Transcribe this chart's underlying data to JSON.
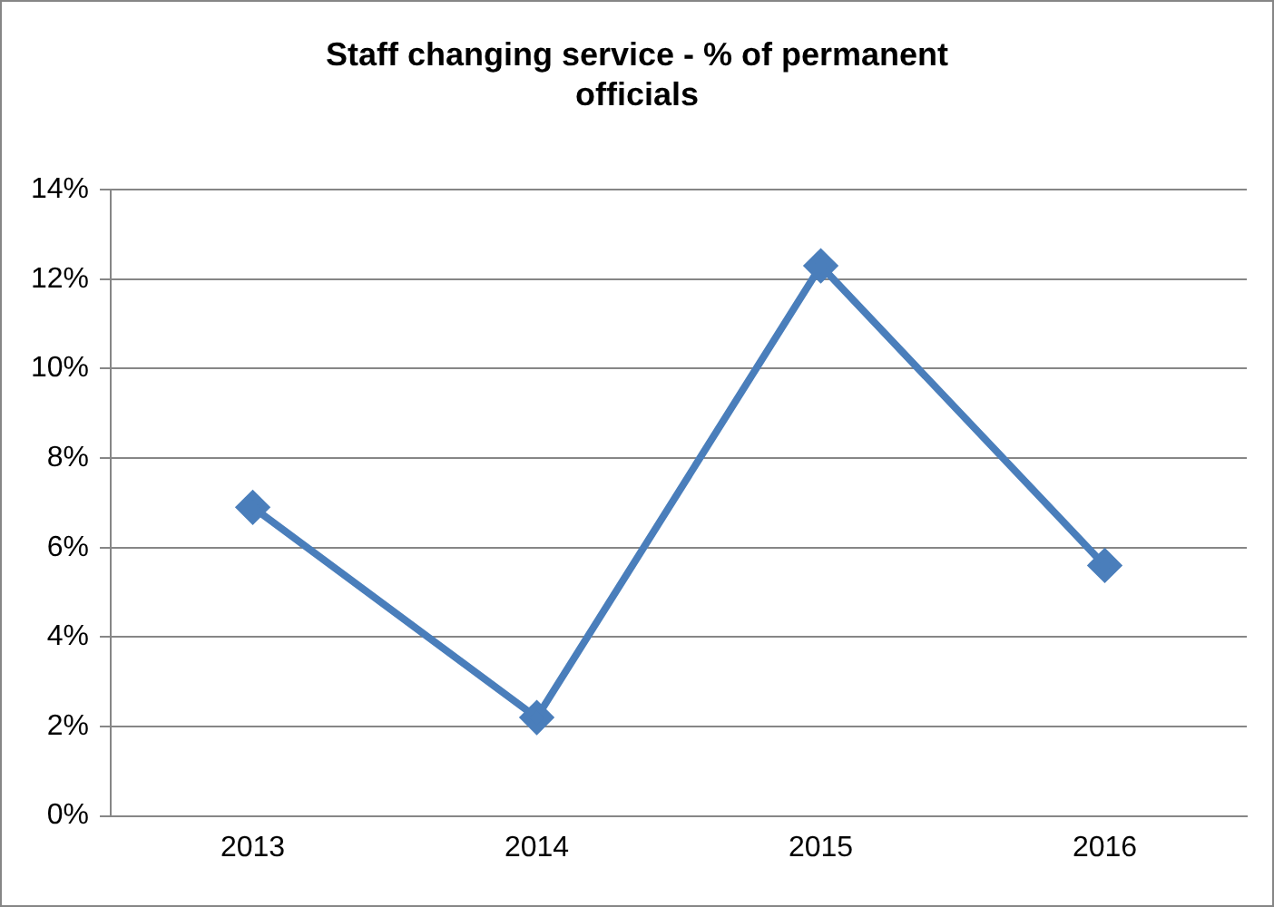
{
  "chart_data": {
    "type": "line",
    "title": "Staff changing service - % of permanent officials",
    "categories": [
      "2013",
      "2014",
      "2015",
      "2016"
    ],
    "series": [
      {
        "color": "#4a7ebb",
        "values": [
          6.9,
          2.2,
          12.3,
          5.6
        ]
      }
    ],
    "ylim": [
      0,
      14
    ],
    "yticks": [
      {
        "value": 0,
        "label": "0%"
      },
      {
        "value": 2,
        "label": "2%"
      },
      {
        "value": 4,
        "label": "4%"
      },
      {
        "value": 6,
        "label": "6%"
      },
      {
        "value": 8,
        "label": "8%"
      },
      {
        "value": 10,
        "label": "10%"
      },
      {
        "value": 12,
        "label": "12%"
      },
      {
        "value": 14,
        "label": "14%"
      }
    ],
    "grid": "y",
    "legend": false,
    "marker": "diamond",
    "line_style": "solid"
  }
}
